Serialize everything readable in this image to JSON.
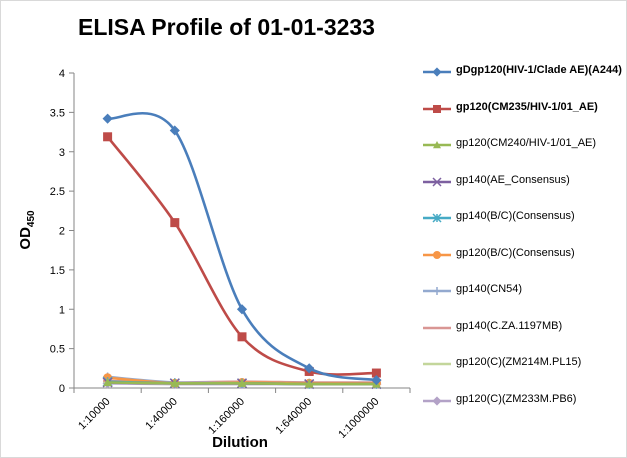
{
  "chart_data": {
    "type": "line",
    "title": "ELISA Profile of 01-01-3233",
    "xlabel": "Dilution",
    "ylabel": "OD",
    "ylabel_subscript": "450",
    "categories": [
      "1:10000",
      "1:40000",
      "1:160000",
      "1:640000",
      "1:1000000"
    ],
    "ylim": [
      0,
      4
    ],
    "yticks": [
      "0",
      "0.5",
      "1",
      "1.5",
      "2",
      "2.5",
      "3",
      "3.5",
      "4"
    ],
    "grid": false,
    "legend_position": "right",
    "series": [
      {
        "name": "gDgp120(HIV-1/Clade AE)(A244)",
        "values": [
          3.42,
          3.27,
          1.0,
          0.25,
          0.1
        ],
        "color": "#4a7ebb",
        "marker": "diamond"
      },
      {
        "name": "gp120(CM235/HIV-1/01_AE)",
        "values": [
          3.19,
          2.1,
          0.65,
          0.21,
          0.19
        ],
        "color": "#be4b48",
        "marker": "square"
      },
      {
        "name": "gp120(CM240/HIV-1/01_AE)",
        "values": [
          0.07,
          0.06,
          0.06,
          0.05,
          0.05
        ],
        "color": "#98b954",
        "marker": "triangle"
      },
      {
        "name": "gp140(AE_Consensus)",
        "values": [
          0.07,
          0.06,
          0.06,
          0.05,
          0.05
        ],
        "color": "#7d60a0",
        "marker": "x"
      },
      {
        "name": "gp140(B/C)(Consensus)",
        "values": [
          0.08,
          0.06,
          0.06,
          0.05,
          0.05
        ],
        "color": "#46aac5",
        "marker": "star"
      },
      {
        "name": "gp120(B/C)(Consensus)",
        "values": [
          0.13,
          0.06,
          0.07,
          0.06,
          0.06
        ],
        "color": "#f79646",
        "marker": "circle"
      },
      {
        "name": "gp140(CN54)",
        "values": [
          0.14,
          0.07,
          0.07,
          0.06,
          0.06
        ],
        "color": "#93a9cf",
        "marker": "plus"
      },
      {
        "name": "gp140(C.ZA.1197MB)",
        "values": [
          0.09,
          0.07,
          0.08,
          0.07,
          0.07
        ],
        "color": "#d99694",
        "marker": "line"
      },
      {
        "name": "gp120(C)(ZM214M.PL15)",
        "values": [
          0.08,
          0.06,
          0.07,
          0.06,
          0.06
        ],
        "color": "#c3d69b",
        "marker": "line"
      },
      {
        "name": "gp120(C)(ZM233M.PB6)",
        "values": [
          0.06,
          0.05,
          0.05,
          0.05,
          0.05
        ],
        "color": "#b3a2c7",
        "marker": "diamond"
      }
    ]
  }
}
